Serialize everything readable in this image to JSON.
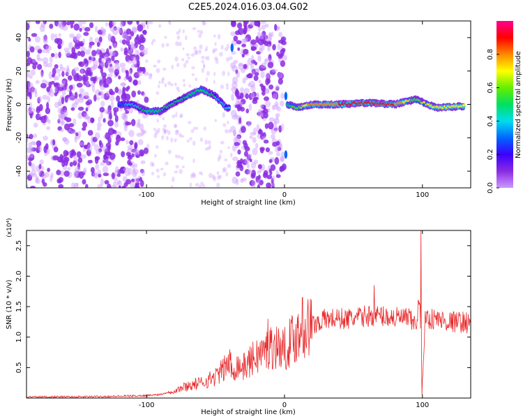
{
  "title": "C2E5.2024.016.03.04.G02",
  "chart_data": [
    {
      "type": "heatmap",
      "xlabel": "Height of straight line (km)",
      "ylabel": "Frequency (Hz)",
      "xlim": [
        -187,
        135
      ],
      "ylim": [
        -50,
        50
      ],
      "xticks": [
        -100,
        0,
        100
      ],
      "yticks": [
        -40,
        -20,
        0,
        20,
        40
      ],
      "colorbar": {
        "label": "Normalized spectral amplitude",
        "range": [
          0,
          1
        ],
        "ticks": [
          0.0,
          0.2,
          0.4,
          0.6,
          0.8
        ],
        "colormap": [
          "#cc99ff",
          "#8a2be2",
          "#3b00ff",
          "#0066ff",
          "#00ddee",
          "#00e060",
          "#66ee00",
          "#ffff00",
          "#ff8800",
          "#ff0000",
          "#ff0090"
        ]
      },
      "noise_regions": [
        {
          "x": [
            -187,
            -100
          ],
          "level": 0.25
        },
        {
          "x": [
            -38,
            0
          ],
          "level": 0.3
        }
      ],
      "ridge": [
        {
          "x": -120,
          "freq": 0,
          "amp": 0.3
        },
        {
          "x": -110,
          "freq": 0,
          "amp": 0.4
        },
        {
          "x": -100,
          "freq": -4,
          "amp": 0.5
        },
        {
          "x": -90,
          "freq": -4,
          "amp": 0.5
        },
        {
          "x": -80,
          "freq": 1,
          "amp": 0.45
        },
        {
          "x": -70,
          "freq": 5,
          "amp": 0.5
        },
        {
          "x": -60,
          "freq": 9,
          "amp": 0.55
        },
        {
          "x": -50,
          "freq": 5,
          "amp": 0.45
        },
        {
          "x": -42,
          "freq": -2,
          "amp": 0.35
        },
        {
          "x": 2,
          "freq": 0,
          "amp": 0.5
        },
        {
          "x": 10,
          "freq": -2,
          "amp": 0.6
        },
        {
          "x": 20,
          "freq": 0,
          "amp": 0.8
        },
        {
          "x": 40,
          "freq": 0,
          "amp": 0.85
        },
        {
          "x": 60,
          "freq": 1,
          "amp": 0.85
        },
        {
          "x": 80,
          "freq": 0,
          "amp": 0.85
        },
        {
          "x": 95,
          "freq": 3,
          "amp": 0.6
        },
        {
          "x": 110,
          "freq": -2,
          "amp": 0.75
        },
        {
          "x": 130,
          "freq": -1,
          "amp": 0.7
        }
      ]
    },
    {
      "type": "line",
      "xlabel": "Height of straight line (km)",
      "ylabel": "SNR (10 * v/v)",
      "yscale_note": "(x10⁴)",
      "xlim": [
        -187,
        135
      ],
      "ylim": [
        0,
        2.75
      ],
      "xticks": [
        -100,
        0,
        100
      ],
      "yticks": [
        0.5,
        1.0,
        1.5,
        2.0,
        2.5
      ],
      "color": "#e8282a",
      "x": [
        -187,
        -150,
        -120,
        -100,
        -90,
        -80,
        -70,
        -60,
        -50,
        -45,
        -40,
        -38,
        -35,
        -30,
        -25,
        -20,
        -15,
        -10,
        -5,
        0,
        5,
        10,
        15,
        20,
        25,
        30,
        40,
        50,
        60,
        70,
        80,
        90,
        95,
        98,
        100,
        102,
        105,
        110,
        120,
        130,
        135
      ],
      "y": [
        0.02,
        0.02,
        0.03,
        0.04,
        0.06,
        0.12,
        0.2,
        0.25,
        0.35,
        0.45,
        0.6,
        0.4,
        0.55,
        0.5,
        0.6,
        0.7,
        0.75,
        0.85,
        0.85,
        0.8,
        0.95,
        1.05,
        1.15,
        1.2,
        1.25,
        1.3,
        1.3,
        1.3,
        1.35,
        1.35,
        1.32,
        1.3,
        1.2,
        1.6,
        0.4,
        1.3,
        1.3,
        1.3,
        1.25,
        1.25,
        1.22
      ],
      "peaks": [
        {
          "x": -39,
          "y": 0.75
        },
        {
          "x": -12,
          "y": 1.3
        },
        {
          "x": 13,
          "y": 1.65
        },
        {
          "x": 65,
          "y": 1.85
        },
        {
          "x": 99,
          "y": 2.75
        },
        {
          "x": 99.5,
          "y": 0.05
        }
      ]
    }
  ]
}
